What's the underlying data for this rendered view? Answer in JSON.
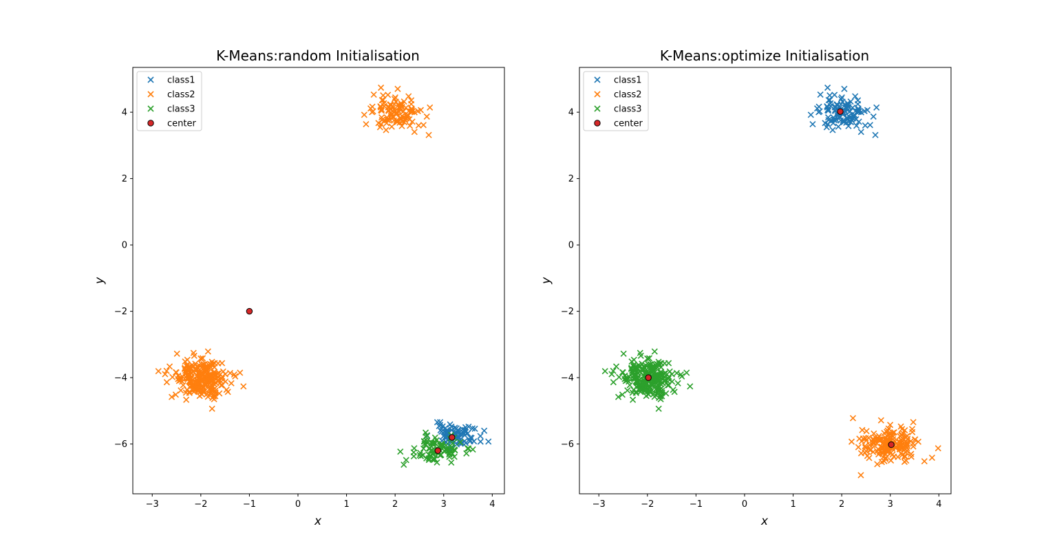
{
  "colors": {
    "class1": "#1f77b4",
    "class2": "#ff7f0e",
    "class3": "#2ca02c",
    "center": "#d62728"
  },
  "chart_data": [
    {
      "type": "scatter",
      "title": "K-Means:random Initialisation",
      "xlabel": "x",
      "ylabel": "y",
      "xlim": [
        -3.4,
        4.25
      ],
      "ylim": [
        -7.5,
        5.35
      ],
      "xticks": [
        -3,
        -2,
        -1,
        0,
        1,
        2,
        3,
        4
      ],
      "yticks": [
        -6,
        -4,
        -2,
        0,
        2,
        4
      ],
      "grid": false,
      "legend_position": "top-left",
      "series": [
        {
          "name": "class1",
          "color_key": "class1",
          "marker": "x",
          "clusters": [
            {
              "cx": 3.25,
              "cy": -5.75,
              "sx": 0.25,
              "sy": 0.18,
              "n": 80,
              "seed": 11
            }
          ]
        },
        {
          "name": "class2",
          "color_key": "class2",
          "marker": "x",
          "clusters": [
            {
              "cx": 2.0,
              "cy": 4.0,
              "sx": 0.28,
              "sy": 0.28,
              "n": 110,
              "seed": 21
            },
            {
              "cx": -2.0,
              "cy": -4.0,
              "sx": 0.28,
              "sy": 0.28,
              "n": 250,
              "seed": 22
            }
          ]
        },
        {
          "name": "class3",
          "color_key": "class3",
          "marker": "x",
          "clusters": [
            {
              "cx": 2.85,
              "cy": -6.15,
              "sx": 0.26,
              "sy": 0.2,
              "n": 90,
              "seed": 31
            }
          ]
        },
        {
          "name": "center",
          "color_key": "center",
          "marker": "o",
          "points": [
            [
              -1.0,
              -2.0
            ],
            [
              3.17,
              -5.8
            ],
            [
              2.88,
              -6.2
            ]
          ]
        }
      ]
    },
    {
      "type": "scatter",
      "title": "K-Means:optimize Initialisation",
      "xlabel": "x",
      "ylabel": "y",
      "xlim": [
        -3.4,
        4.25
      ],
      "ylim": [
        -7.5,
        5.35
      ],
      "xticks": [
        -3,
        -2,
        -1,
        0,
        1,
        2,
        3,
        4
      ],
      "yticks": [
        -6,
        -4,
        -2,
        0,
        2,
        4
      ],
      "grid": false,
      "legend_position": "top-left",
      "series": [
        {
          "name": "class1",
          "color_key": "class1",
          "marker": "x",
          "clusters": [
            {
              "cx": 2.0,
              "cy": 4.0,
              "sx": 0.28,
              "sy": 0.28,
              "n": 110,
              "seed": 21
            }
          ]
        },
        {
          "name": "class2",
          "color_key": "class2",
          "marker": "x",
          "clusters": [
            {
              "cx": 3.0,
              "cy": -6.0,
              "sx": 0.3,
              "sy": 0.28,
              "n": 170,
              "seed": 41
            }
          ]
        },
        {
          "name": "class3",
          "color_key": "class3",
          "marker": "x",
          "clusters": [
            {
              "cx": -2.0,
              "cy": -4.0,
              "sx": 0.28,
              "sy": 0.28,
              "n": 250,
              "seed": 22
            }
          ]
        },
        {
          "name": "center",
          "color_key": "center",
          "marker": "o",
          "points": [
            [
              1.97,
              4.02
            ],
            [
              3.02,
              -6.02
            ],
            [
              -1.98,
              -4.0
            ]
          ]
        }
      ]
    }
  ]
}
